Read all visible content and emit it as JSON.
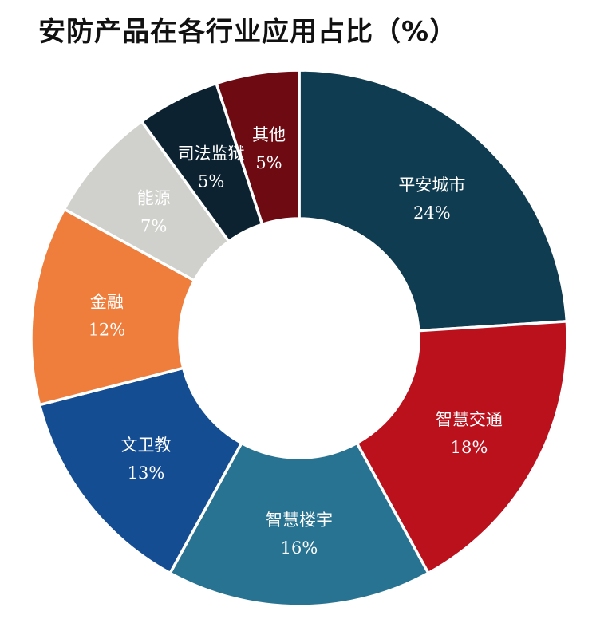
{
  "chart_data": {
    "type": "pie",
    "title": "安防产品在各行业应用占比（%）",
    "legend": "none",
    "slices": [
      {
        "name": "平安城市",
        "value": 24,
        "value_label": "24%",
        "color": "#0f3c50"
      },
      {
        "name": "智慧交通",
        "value": 18,
        "value_label": "18%",
        "color": "#bb111d"
      },
      {
        "name": "智慧楼宇",
        "value": 16,
        "value_label": "16%",
        "color": "#277391"
      },
      {
        "name": "文卫教",
        "value": 13,
        "value_label": "13%",
        "color": "#154d92"
      },
      {
        "name": "金融",
        "value": 12,
        "value_label": "12%",
        "color": "#ef7d3c"
      },
      {
        "name": "能源",
        "value": 7,
        "value_label": "7%",
        "color": "#d0d0cc"
      },
      {
        "name": "司法监狱",
        "value": 5,
        "value_label": "5%",
        "color": "#0c2230"
      },
      {
        "name": "其他",
        "value": 5,
        "value_label": "5%",
        "color": "#6e0a12"
      }
    ]
  }
}
